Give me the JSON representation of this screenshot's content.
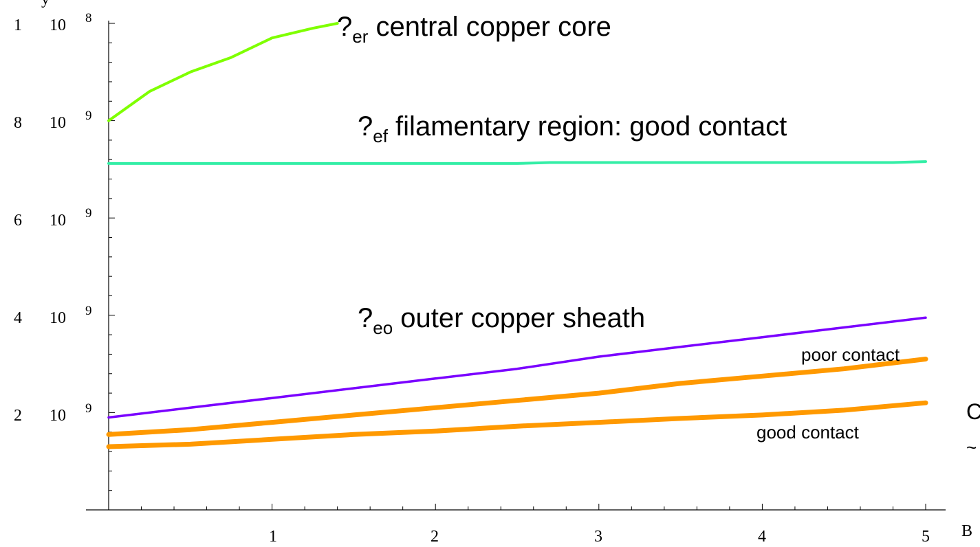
{
  "chart_data": {
    "type": "line",
    "x_ticks": [
      "1",
      "2",
      "3",
      "4",
      "5"
    ],
    "y_ticks": [
      {
        "mantissa": "2",
        "exp": "9"
      },
      {
        "mantissa": "4",
        "exp": "9"
      },
      {
        "mantissa": "6",
        "exp": "9"
      },
      {
        "mantissa": "8",
        "exp": "9"
      },
      {
        "mantissa": "1",
        "exp": "8"
      }
    ],
    "xlabel_visible": "B",
    "ylabel_visible": "y",
    "xlim": [
      0,
      5
    ],
    "ylim": [
      0,
      1e-08
    ],
    "series": [
      {
        "name": "central copper core",
        "symbol": "?",
        "subscript": "er",
        "color": "#7fff00",
        "x": [
          0,
          0.25,
          0.5,
          0.75,
          1.0,
          1.25,
          1.4
        ],
        "y": [
          8e-09,
          8.6e-09,
          9e-09,
          9.3e-09,
          9.7e-09,
          9.9e-09,
          1e-08
        ]
      },
      {
        "name": "filamentary region: good contact",
        "symbol": "?",
        "subscript": "ef",
        "color": "#33eea6",
        "x": [
          0,
          1,
          2,
          2.5,
          2.7,
          3,
          4,
          4.8,
          5
        ],
        "y": [
          7.12e-09,
          7.12e-09,
          7.12e-09,
          7.12e-09,
          7.14e-09,
          7.14e-09,
          7.14e-09,
          7.14e-09,
          7.16e-09
        ]
      },
      {
        "name": "outer copper sheath",
        "symbol": "?",
        "subscript": "eo",
        "color": "#7a00ff",
        "x": [
          0,
          0.5,
          1,
          1.5,
          2,
          2.5,
          3,
          3.5,
          4,
          4.5,
          5
        ],
        "y": [
          1.9e-09,
          2.1e-09,
          2.3e-09,
          2.5e-09,
          2.7e-09,
          2.9e-09,
          3.15e-09,
          3.35e-09,
          3.55e-09,
          3.75e-09,
          3.95e-09
        ]
      },
      {
        "name": "poor contact",
        "color": "#ff9900",
        "x": [
          0,
          0.5,
          1,
          1.5,
          2,
          2.5,
          3,
          3.5,
          4,
          4.5,
          5
        ],
        "y": [
          1.55e-09,
          1.65e-09,
          1.8e-09,
          1.95e-09,
          2.1e-09,
          2.25e-09,
          2.4e-09,
          2.6e-09,
          2.75e-09,
          2.9e-09,
          3.1e-09
        ]
      },
      {
        "name": "good contact",
        "color": "#ff9900",
        "x": [
          0,
          0.5,
          1,
          1.5,
          2,
          2.5,
          3,
          3.5,
          4,
          4.5,
          5
        ],
        "y": [
          1.3e-09,
          1.35e-09,
          1.45e-09,
          1.55e-09,
          1.62e-09,
          1.72e-09,
          1.8e-09,
          1.88e-09,
          1.95e-09,
          2.05e-09,
          2.2e-09
        ]
      }
    ],
    "annotations": {
      "central_core": {
        "symbol": "?",
        "subscript": "er",
        "text": " central copper core"
      },
      "filamentary": {
        "symbol": "?",
        "subscript": "ef",
        "text": " filamentary region: good contact"
      },
      "outer_sheath": {
        "symbol": "?",
        "subscript": "eo",
        "text": " outer copper sheath"
      },
      "poor_contact": "poor contact",
      "good_contact": "good contact",
      "right_edge_fragment": "C",
      "right_edge_tilde": "~"
    },
    "grid": false,
    "legend": "none"
  }
}
